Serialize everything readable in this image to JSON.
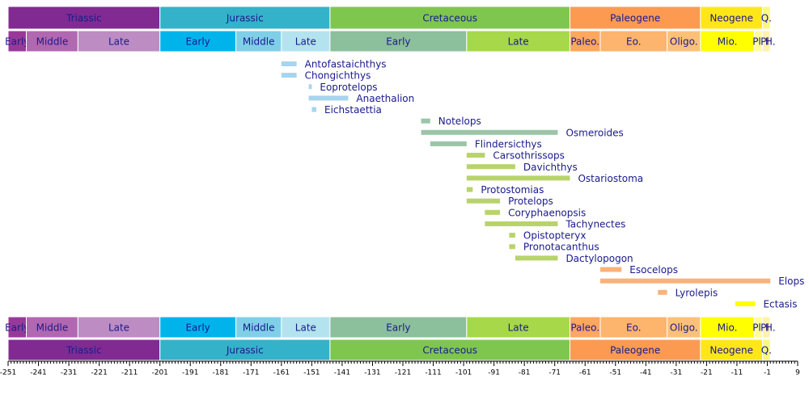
{
  "chart_data": {
    "type": "timeline",
    "xlim": [
      -251,
      9
    ],
    "xticks": [
      -251,
      -241,
      -231,
      -221,
      -211,
      -201,
      -191,
      -181,
      -171,
      -161,
      -151,
      -141,
      -131,
      -121,
      -111,
      -101,
      -91,
      -81,
      -71,
      -61,
      -51,
      -41,
      -31,
      -21,
      -11,
      -1,
      9
    ],
    "periods": [
      {
        "name": "Triassic",
        "start": -251,
        "end": -201,
        "color": "#812b92"
      },
      {
        "name": "Jurassic",
        "start": -201,
        "end": -145,
        "color": "#34b2c9"
      },
      {
        "name": "Cretaceous",
        "start": -145,
        "end": -66,
        "color": "#7fc64e"
      },
      {
        "name": "Paleogene",
        "start": -66,
        "end": -23,
        "color": "#fd9a52"
      },
      {
        "name": "Neogene",
        "start": -23,
        "end": -2.6,
        "color": "#ffe619"
      },
      {
        "name": "Q.",
        "start": -2.6,
        "end": 0,
        "color": "#f9f97f"
      }
    ],
    "epochs": [
      {
        "name": "Early",
        "start": -251,
        "end": -245,
        "color": "#983999"
      },
      {
        "name": "Middle",
        "start": -245,
        "end": -228,
        "color": "#b168b1"
      },
      {
        "name": "Late",
        "start": -228,
        "end": -201,
        "color": "#bd8cc3"
      },
      {
        "name": "Early",
        "start": -201,
        "end": -176,
        "color": "#00b4eb"
      },
      {
        "name": "Middle",
        "start": -176,
        "end": -161,
        "color": "#80cfe8"
      },
      {
        "name": "Late",
        "start": -161,
        "end": -145,
        "color": "#b3e3ee"
      },
      {
        "name": "Early",
        "start": -145,
        "end": -100,
        "color": "#8cbf9b"
      },
      {
        "name": "Late",
        "start": -100,
        "end": -66,
        "color": "#a6d84a"
      },
      {
        "name": "Paleo.",
        "start": -66,
        "end": -56,
        "color": "#fda75f"
      },
      {
        "name": "Eo.",
        "start": -56,
        "end": -34,
        "color": "#fdb46c"
      },
      {
        "name": "Oligo.",
        "start": -34,
        "end": -23,
        "color": "#fdc07a"
      },
      {
        "name": "Mio.",
        "start": -23,
        "end": -5.3,
        "color": "#ffff00"
      },
      {
        "name": "Pl.",
        "start": -5.3,
        "end": -2.6,
        "color": "#ffff99"
      },
      {
        "name": "Pl.",
        "start": -2.6,
        "end": -0.01,
        "color": "#fff2ae"
      },
      {
        "name": "H.",
        "start": -0.01,
        "end": 0,
        "color": "#fef2e0"
      }
    ],
    "taxa": [
      {
        "name": "Antofastaichthys",
        "start": -161,
        "end": -156,
        "color": "#a6d5ee"
      },
      {
        "name": "Chongichthys",
        "start": -161,
        "end": -156,
        "color": "#a6d5ee"
      },
      {
        "name": "Eoprotelops",
        "start": -152,
        "end": -151,
        "color": "#a6d5ee"
      },
      {
        "name": "Anaethalion",
        "start": -152,
        "end": -139,
        "color": "#a6d5ee"
      },
      {
        "name": "Eichstaettia",
        "start": -151,
        "end": -149.5,
        "color": "#a6d5ee"
      },
      {
        "name": "Notelops",
        "start": -115,
        "end": -112,
        "color": "#9cc5a8"
      },
      {
        "name": "Osmeroides",
        "start": -115,
        "end": -70,
        "color": "#9cc5a8"
      },
      {
        "name": "Flindersicthys",
        "start": -112,
        "end": -100,
        "color": "#9cc5a8"
      },
      {
        "name": "Carsothrissops",
        "start": -100,
        "end": -94,
        "color": "#b8d36c"
      },
      {
        "name": "Davichthys",
        "start": -100,
        "end": -84,
        "color": "#b8d36c"
      },
      {
        "name": "Ostariostoma",
        "start": -100,
        "end": -66,
        "color": "#b8d36c"
      },
      {
        "name": "Protostomias",
        "start": -100,
        "end": -98,
        "color": "#b8d36c"
      },
      {
        "name": "Protelops",
        "start": -100,
        "end": -89,
        "color": "#b8d36c"
      },
      {
        "name": "Coryphaenopsis",
        "start": -94,
        "end": -89,
        "color": "#b8d36c"
      },
      {
        "name": "Tachynectes",
        "start": -94,
        "end": -70,
        "color": "#b8d36c"
      },
      {
        "name": "Opistopteryx",
        "start": -86,
        "end": -84,
        "color": "#b8d36c"
      },
      {
        "name": "Pronotacanthus",
        "start": -86,
        "end": -84,
        "color": "#b8d36c"
      },
      {
        "name": "Dactylopogon",
        "start": -84,
        "end": -70,
        "color": "#b8d36c"
      },
      {
        "name": "Esocelops",
        "start": -56,
        "end": -49,
        "color": "#f9b27a"
      },
      {
        "name": "Elops",
        "start": -56,
        "end": 0,
        "color": "#f9b27a"
      },
      {
        "name": "Lyrolepis",
        "start": -37,
        "end": -34,
        "color": "#f9b27a"
      },
      {
        "name": "Ectasis",
        "start": -11.5,
        "end": -5,
        "color": "#ffff00"
      }
    ]
  }
}
